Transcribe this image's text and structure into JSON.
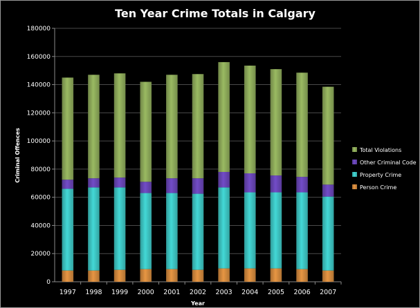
{
  "chart_data": {
    "type": "bar",
    "stacked": true,
    "title": "Ten Year Crime Totals in Calgary",
    "xlabel": "Year",
    "ylabel": "Criminal Offences",
    "ylim": [
      0,
      180000
    ],
    "yticks": [
      0,
      20000,
      40000,
      60000,
      80000,
      100000,
      120000,
      140000,
      160000,
      180000
    ],
    "grid": true,
    "legend_position": "right",
    "categories": [
      "1997",
      "1998",
      "1999",
      "2000",
      "2001",
      "2002",
      "2003",
      "2004",
      "2005",
      "2006",
      "2007"
    ],
    "series": [
      {
        "name": "Person Crime",
        "color": "#d68b3e",
        "values": [
          8000,
          8000,
          8500,
          9000,
          9000,
          8500,
          9500,
          9500,
          9500,
          9000,
          8000
        ]
      },
      {
        "name": "Property Crime",
        "color": "#3ec8c6",
        "values": [
          58000,
          59000,
          58500,
          54000,
          54000,
          54000,
          57500,
          54000,
          54000,
          54500,
          52500
        ]
      },
      {
        "name": "Other Criminal Code",
        "color": "#6a46b8",
        "values": [
          6500,
          6500,
          7000,
          8000,
          10500,
          11000,
          11000,
          13500,
          12000,
          11000,
          8500
        ]
      },
      {
        "name": "Total Violations",
        "color": "#8fac5b",
        "values": [
          72500,
          73500,
          74000,
          71000,
          73500,
          74000,
          78000,
          76500,
          75500,
          74000,
          69500
        ]
      }
    ]
  }
}
